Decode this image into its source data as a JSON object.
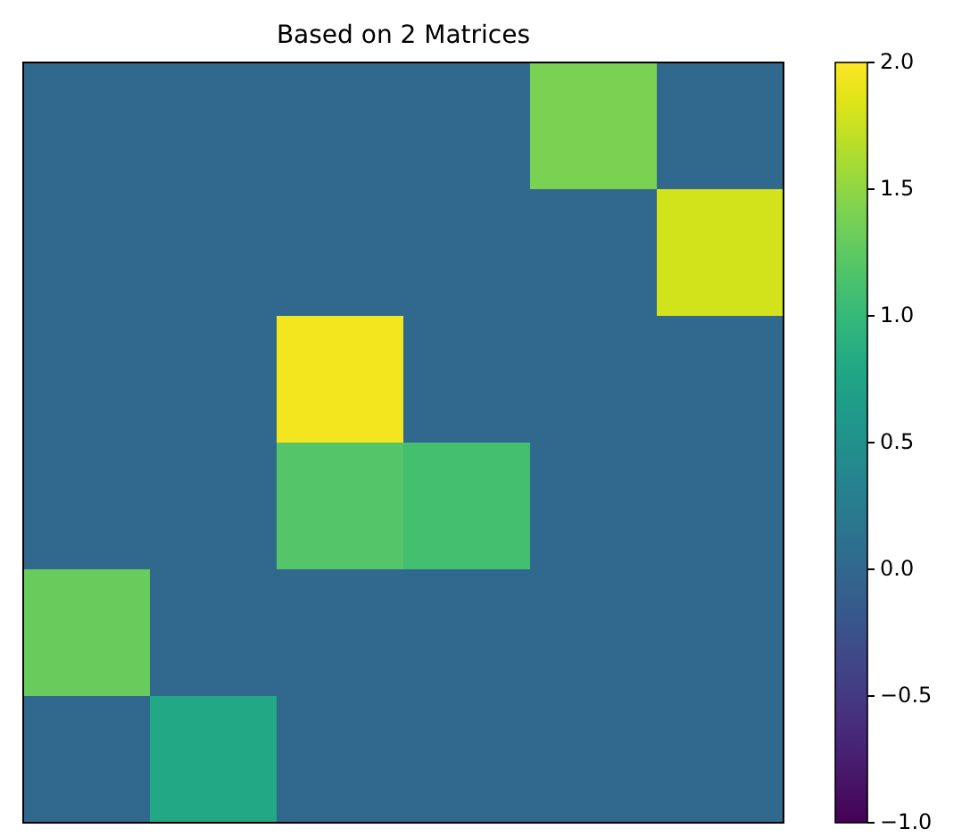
{
  "chart_data": {
    "type": "heatmap",
    "title": "Based on 2 Matrices",
    "categories": [
      null,
      null,
      null,
      null,
      null,
      null
    ],
    "y_categories": [
      null,
      null,
      null,
      null,
      null,
      null
    ],
    "cells": [
      [
        0,
        0,
        0,
        0,
        1.4,
        0
      ],
      [
        0,
        0,
        0,
        0,
        0,
        1.8
      ],
      [
        0,
        0,
        1.95,
        0,
        0,
        0
      ],
      [
        0,
        0,
        1.2,
        1.1,
        0,
        0
      ],
      [
        1.3,
        0,
        0,
        0,
        0,
        0
      ],
      [
        0,
        0.8,
        0,
        0,
        0,
        0
      ]
    ],
    "clim": [
      -1,
      2
    ],
    "cticks": [
      {
        "value": -1,
        "label": "−1.0"
      },
      {
        "value": -0.5,
        "label": "−0.5"
      },
      {
        "value": 0,
        "label": "0.0"
      },
      {
        "value": 0.5,
        "label": "0.5"
      },
      {
        "value": 1,
        "label": "1.0"
      },
      {
        "value": 1.5,
        "label": "1.5"
      },
      {
        "value": 2,
        "label": "2.0"
      }
    ]
  }
}
